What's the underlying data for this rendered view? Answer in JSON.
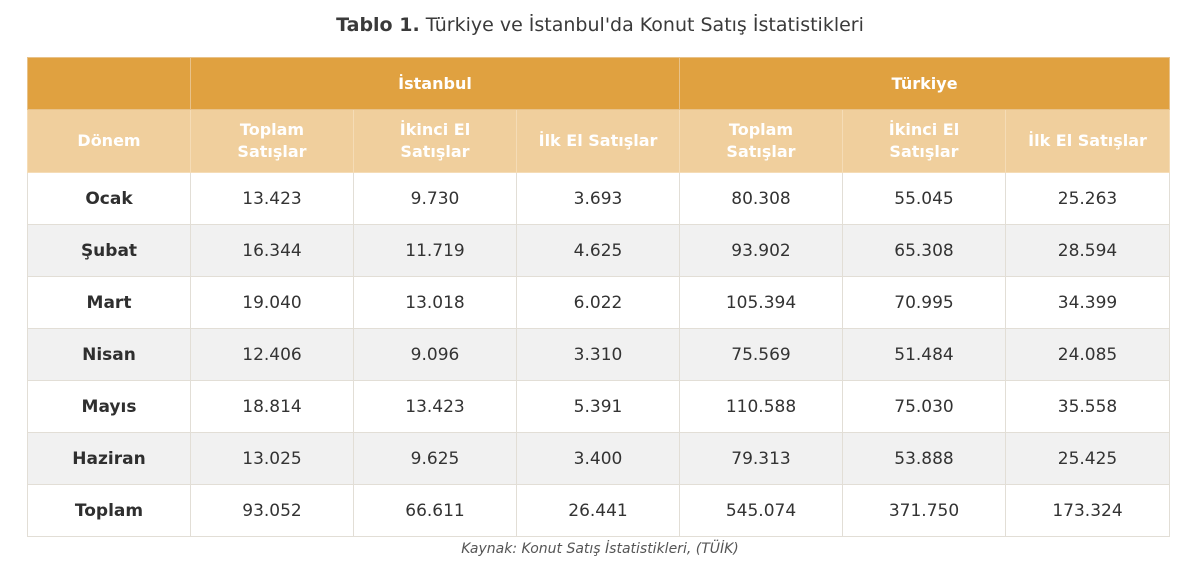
{
  "title": {
    "label": "Tablo 1.",
    "text": "Türkiye ve İstanbul'da Konut Satış İstatistikleri"
  },
  "groups": [
    "İstanbul",
    "Türkiye"
  ],
  "columns": {
    "period": "Dönem",
    "total_1": "Toplam",
    "total_2": "Satışlar",
    "second_1": "İkinci El",
    "second_2": "Satışlar",
    "first": "İlk El Satışlar"
  },
  "rows": [
    {
      "period": "Ocak",
      "ist_total": "13.423",
      "ist_second": "9.730",
      "ist_first": "3.693",
      "tr_total": "80.308",
      "tr_second": "55.045",
      "tr_first": "25.263"
    },
    {
      "period": "Şubat",
      "ist_total": "16.344",
      "ist_second": "11.719",
      "ist_first": "4.625",
      "tr_total": "93.902",
      "tr_second": "65.308",
      "tr_first": "28.594"
    },
    {
      "period": "Mart",
      "ist_total": "19.040",
      "ist_second": "13.018",
      "ist_first": "6.022",
      "tr_total": "105.394",
      "tr_second": "70.995",
      "tr_first": "34.399"
    },
    {
      "period": "Nisan",
      "ist_total": "12.406",
      "ist_second": "9.096",
      "ist_first": "3.310",
      "tr_total": "75.569",
      "tr_second": "51.484",
      "tr_first": "24.085"
    },
    {
      "period": "Mayıs",
      "ist_total": "18.814",
      "ist_second": "13.423",
      "ist_first": "5.391",
      "tr_total": "110.588",
      "tr_second": "75.030",
      "tr_first": "35.558"
    },
    {
      "period": "Haziran",
      "ist_total": "13.025",
      "ist_second": "9.625",
      "ist_first": "3.400",
      "tr_total": "79.313",
      "tr_second": "53.888",
      "tr_first": "25.425"
    },
    {
      "period": "Toplam",
      "ist_total": "93.052",
      "ist_second": "66.611",
      "ist_first": "26.441",
      "tr_total": "545.074",
      "tr_second": "371.750",
      "tr_first": "173.324"
    }
  ],
  "source": "Kaynak: Konut Satış İstatistikleri, (TÜİK)"
}
